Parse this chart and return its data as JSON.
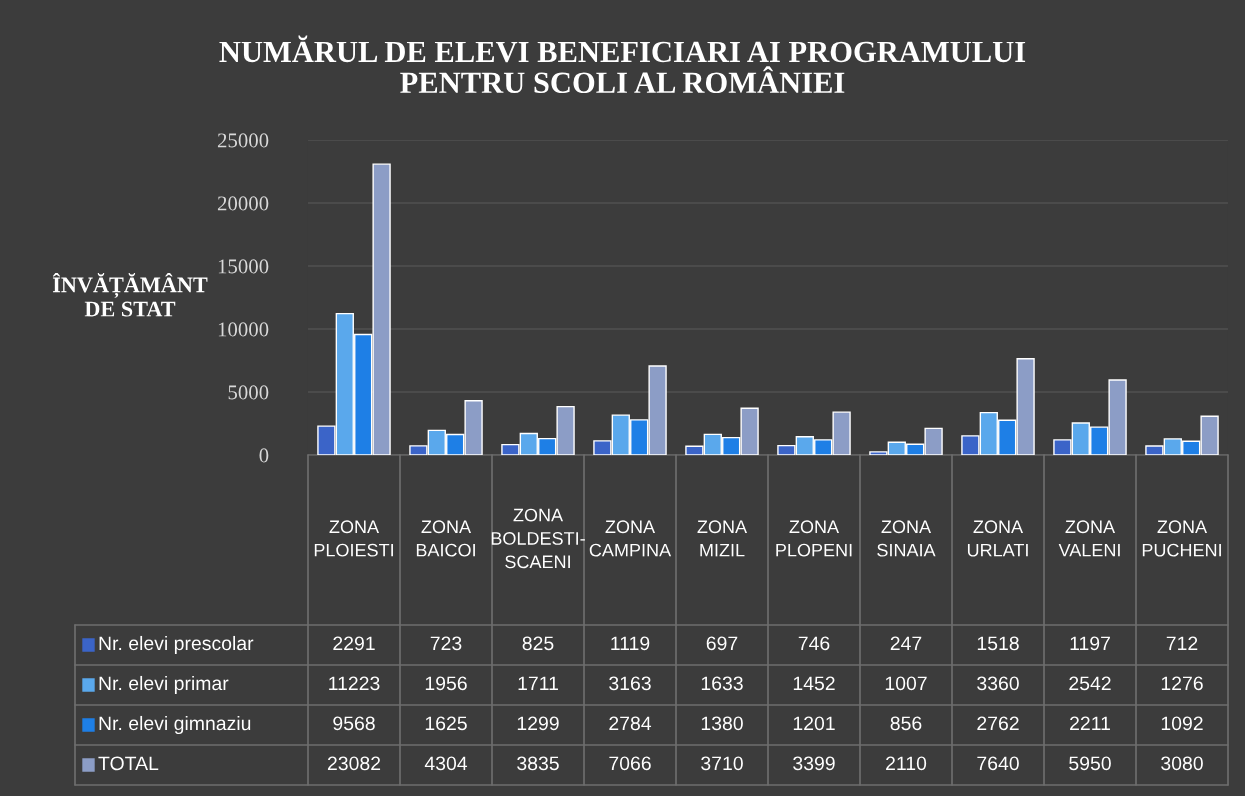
{
  "chart_data": {
    "type": "bar",
    "title": "NUMĂRUL DE ELEVI BENEFICIARI AI PROGRAMULUI\nPENTRU SCOLI AL ROMÂNIEI",
    "ylabel": "ÎNVĂȚĂMÂNT\nDE STAT",
    "categories": [
      "ZONA PLOIESTI",
      "ZONA BAICOI",
      "ZONA BOLDESTI-SCAENI",
      "ZONA CAMPINA",
      "ZONA MIZIL",
      "ZONA PLOPENI",
      "ZONA SINAIA",
      "ZONA URLATI",
      "ZONA VALENI",
      "ZONA PUCHENI"
    ],
    "series": [
      {
        "name": "Nr. elevi prescolar",
        "color": "#3b64c8",
        "values": [
          2291,
          723,
          825,
          1119,
          697,
          746,
          247,
          1518,
          1197,
          712
        ]
      },
      {
        "name": "Nr. elevi primar",
        "color": "#5aa8ec",
        "values": [
          11223,
          1956,
          1711,
          3163,
          1633,
          1452,
          1007,
          3360,
          2542,
          1276
        ]
      },
      {
        "name": "Nr. elevi gimnaziu",
        "color": "#1e7fe6",
        "values": [
          9568,
          1625,
          1299,
          2784,
          1380,
          1201,
          856,
          2762,
          2211,
          1092
        ]
      },
      {
        "name": "TOTAL",
        "color": "#8c9dc6",
        "values": [
          23082,
          4304,
          3835,
          7066,
          3710,
          3399,
          2110,
          7640,
          5950,
          3080
        ]
      }
    ],
    "ylim": [
      0,
      25000
    ],
    "yticks": [
      0,
      5000,
      10000,
      15000,
      20000,
      25000
    ],
    "grid": "y",
    "data_labels": true,
    "legend": "bottom left"
  }
}
